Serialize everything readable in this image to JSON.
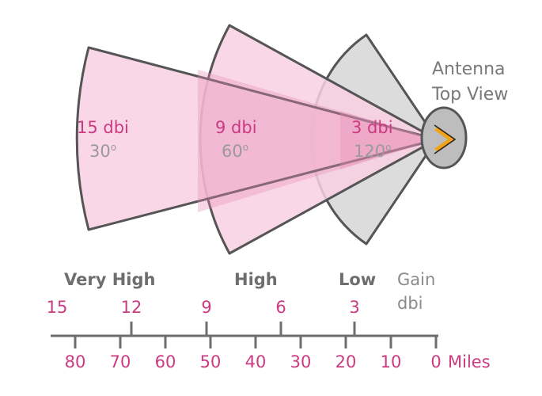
{
  "antenna": {
    "title_line1": "Antenna",
    "title_line2": "Top View"
  },
  "lobes": [
    {
      "gain": "15 dbi",
      "angle": "30",
      "angle_unit": "o"
    },
    {
      "gain": "9 dbi",
      "angle": "60",
      "angle_unit": "o"
    },
    {
      "gain": "3 dbi",
      "angle": "120",
      "angle_unit": "o"
    }
  ],
  "categories": [
    "Very High",
    "High",
    "Low"
  ],
  "gain_axis": {
    "title_line1": "Gain",
    "title_line2": "dbi",
    "ticks": [
      "15",
      "12",
      "9",
      "6",
      "3"
    ]
  },
  "miles_axis": {
    "ticks": [
      "80",
      "70",
      "60",
      "50",
      "40",
      "30",
      "20",
      "10",
      "0"
    ],
    "unit": "Miles"
  },
  "colors": {
    "pink_fill": "#f8d0e2",
    "pink_dark": "#eaa6c6",
    "gray_fill": "#dcdcdc",
    "outline": "#555555",
    "accent": "#cc3a82",
    "antenna_body": "#bdbdbd",
    "antenna_arrow": "#f2a31c"
  }
}
